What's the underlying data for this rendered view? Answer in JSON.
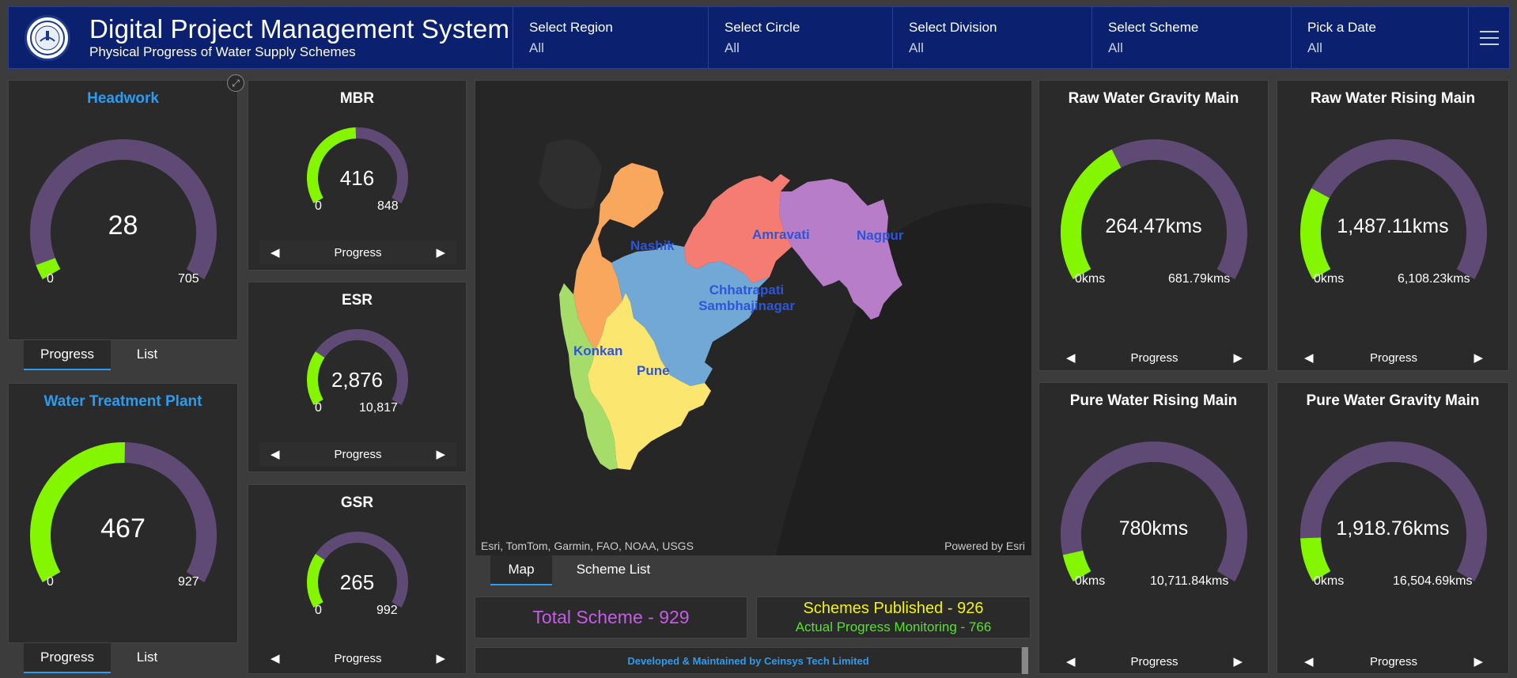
{
  "header": {
    "title": "Digital Project Management System",
    "subtitle": "Physical Progress of Water Supply Schemes",
    "filters": [
      {
        "label": "Select Region",
        "value": "All"
      },
      {
        "label": "Select Circle",
        "value": "All"
      },
      {
        "label": "Select Division",
        "value": "All"
      },
      {
        "label": "Select Scheme",
        "value": "All"
      },
      {
        "label": "Pick a Date",
        "value": "All"
      }
    ]
  },
  "colors": {
    "track": "#5e4a75",
    "fill": "#84f600",
    "accent": "#2b9cf0",
    "header_bg": "#0b2170"
  },
  "gauges": {
    "headwork": {
      "title": "Headwork",
      "value": "28",
      "min": "0",
      "max": "705",
      "fraction": 0.04
    },
    "wtp": {
      "title": "Water Treatment Plant",
      "value": "467",
      "min": "0",
      "max": "927",
      "fraction": 0.504
    },
    "mbr": {
      "title": "MBR",
      "value": "416",
      "min": "0",
      "max": "848",
      "fraction": 0.491,
      "nav": "Progress"
    },
    "esr": {
      "title": "ESR",
      "value": "2,876",
      "min": "0",
      "max": "10,817",
      "fraction": 0.266,
      "nav": "Progress"
    },
    "gsr": {
      "title": "GSR",
      "value": "265",
      "min": "0",
      "max": "992",
      "fraction": 0.267,
      "nav": "Progress"
    },
    "rwgm": {
      "title": "Raw Water Gravity Main",
      "value": "264.47kms",
      "min": "0kms",
      "max": "681.79kms",
      "fraction": 0.388,
      "nav": "Progress"
    },
    "rwrm": {
      "title": "Raw Water Rising Main",
      "value": "1,487.11kms",
      "min": "0kms",
      "max": "6,108.23kms",
      "fraction": 0.243,
      "nav": "Progress"
    },
    "pwrm": {
      "title": "Pure Water Rising Main",
      "value": "780kms",
      "min": "0kms",
      "max": "10,711.84kms",
      "fraction": 0.073,
      "nav": "Progress"
    },
    "pwgm": {
      "title": "Pure Water Gravity Main",
      "value": "1,918.76kms",
      "min": "0kms",
      "max": "16,504.69kms",
      "fraction": 0.116,
      "nav": "Progress"
    }
  },
  "tabs": {
    "progress": "Progress",
    "list": "List"
  },
  "map": {
    "regions": [
      {
        "name": "Nashik",
        "color": "#f8a75c"
      },
      {
        "name": "Amravati",
        "color": "#f57c73"
      },
      {
        "name": "Nagpur",
        "color": "#b77dc8"
      },
      {
        "name": "Chhatrapati Sambhajinagar",
        "line1": "Chhatrapati",
        "line2": "Sambhajinagar",
        "color": "#72a8d6"
      },
      {
        "name": "Konkan",
        "color": "#a6dc6a"
      },
      {
        "name": "Pune",
        "color": "#fbe770"
      }
    ],
    "attribution": "Esri, TomTom, Garmin, FAO, NOAA, USGS",
    "powered": "Powered by Esri",
    "tab_map": "Map",
    "tab_scheme_list": "Scheme List"
  },
  "summary": {
    "total": "Total Scheme - 929",
    "published": "Schemes Published - 926",
    "monitoring": "Actual Progress Monitoring - 766"
  },
  "footer": "Developed & Maintained by Ceinsys Tech Limited"
}
